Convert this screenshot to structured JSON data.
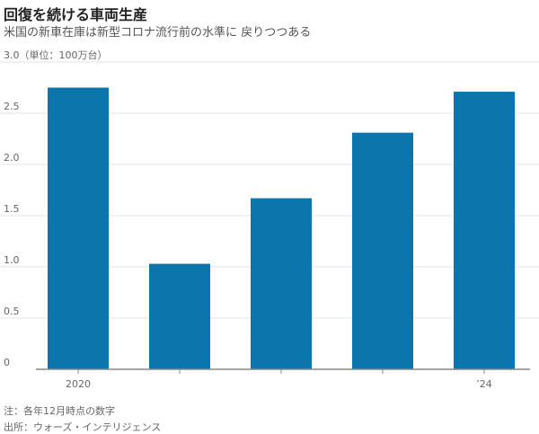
{
  "title": "回復を続ける車両生産",
  "subtitle": "米国の新車在庫は新型コロナ流行前の水準に 戻りつつある",
  "colors": {
    "bar": "#0c75ac",
    "grid": "#e3e3e3",
    "axis": "#888888"
  },
  "chart_data": {
    "type": "bar",
    "unit_label": "（単位：100万台）",
    "categories": [
      "2020",
      "",
      "",
      "",
      "’24"
    ],
    "values": [
      2.75,
      1.03,
      1.67,
      2.31,
      2.71
    ],
    "ylim": [
      0,
      3.0
    ],
    "yticks": [
      "0",
      "0.5",
      "1.0",
      "1.5",
      "2.0",
      "2.5",
      "3.0"
    ],
    "grid": true
  },
  "notes": [
    "注：各年12月時点の数字",
    "出所：ウォーズ・インテリジェンス"
  ]
}
